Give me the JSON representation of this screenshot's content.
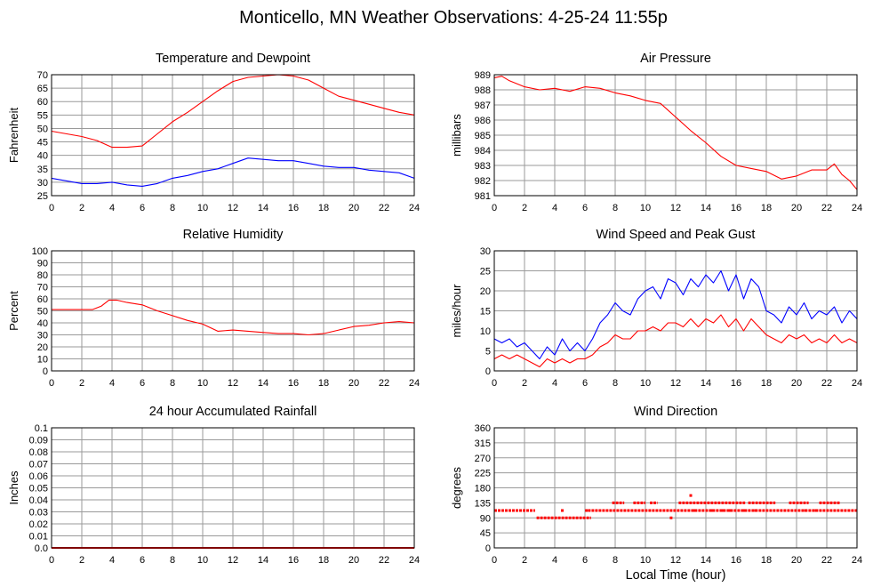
{
  "page": {
    "title": "Monticello, MN Weather Observations: 4-25-24 11:55p",
    "xlabel": "Local Time (hour)"
  },
  "colors": {
    "red": "#ff0000",
    "blue": "#0000ff",
    "grid": "#9a9a9a",
    "frame": "#000000"
  },
  "chart_data": [
    {
      "id": "temp",
      "type": "line",
      "title": "Temperature and Dewpoint",
      "ylabel": "Fahrenheit",
      "xlim": [
        0,
        24
      ],
      "ylim": [
        25,
        70
      ],
      "xticks": [
        "0",
        "2",
        "4",
        "6",
        "8",
        "10",
        "12",
        "14",
        "16",
        "18",
        "20",
        "22",
        "24"
      ],
      "yticks": [
        "25",
        "30",
        "35",
        "40",
        "45",
        "50",
        "55",
        "60",
        "65",
        "70"
      ],
      "grid": true,
      "series": [
        {
          "color": "#ff0000",
          "x": [
            0,
            1,
            2,
            3,
            4,
            5,
            6,
            7,
            8,
            9,
            10,
            11,
            12,
            13,
            14,
            15,
            16,
            17,
            18,
            19,
            20,
            21,
            22,
            23,
            24
          ],
          "y": [
            49,
            48,
            47,
            45.5,
            43,
            43,
            43.5,
            48,
            52.5,
            56,
            60,
            64,
            67.5,
            69,
            69.5,
            70,
            69.5,
            68,
            65,
            62,
            60.5,
            59,
            57.5,
            56,
            55
          ]
        },
        {
          "color": "#0000ff",
          "x": [
            0,
            1,
            2,
            3,
            4,
            5,
            6,
            7,
            8,
            9,
            10,
            11,
            12,
            13,
            14,
            15,
            16,
            17,
            18,
            19,
            20,
            21,
            22,
            23,
            24
          ],
          "y": [
            31.5,
            30.5,
            29.5,
            29.5,
            30,
            29,
            28.5,
            29.5,
            31.5,
            32.5,
            34,
            35,
            37,
            39,
            38.5,
            38,
            38,
            37,
            36,
            35.5,
            35.5,
            34.5,
            34,
            33.5,
            31.5
          ]
        }
      ]
    },
    {
      "id": "pressure",
      "type": "line",
      "title": "Air Pressure",
      "ylabel": "millibars",
      "xlim": [
        0,
        24
      ],
      "ylim": [
        981,
        989
      ],
      "xticks": [
        "0",
        "2",
        "4",
        "6",
        "8",
        "10",
        "12",
        "14",
        "16",
        "18",
        "20",
        "22",
        "24"
      ],
      "yticks": [
        "981",
        "982",
        "983",
        "984",
        "985",
        "986",
        "987",
        "988",
        "989"
      ],
      "grid": true,
      "series": [
        {
          "color": "#ff0000",
          "x": [
            0,
            0.5,
            1,
            2,
            3,
            4,
            5,
            6,
            7,
            8,
            9,
            10,
            11,
            12,
            13,
            14,
            15,
            16,
            17,
            18,
            19,
            20,
            21,
            22,
            22.5,
            23,
            23.5,
            24
          ],
          "y": [
            988.8,
            988.9,
            988.6,
            988.2,
            988.0,
            988.1,
            987.9,
            988.2,
            988.1,
            987.8,
            987.6,
            987.3,
            987.1,
            986.2,
            985.3,
            984.5,
            983.6,
            983.0,
            982.8,
            982.6,
            982.1,
            982.3,
            982.7,
            982.7,
            983.1,
            982.4,
            982.0,
            981.4
          ]
        }
      ]
    },
    {
      "id": "humidity",
      "type": "line",
      "title": "Relative Humidity",
      "ylabel": "Percent",
      "xlim": [
        0,
        24
      ],
      "ylim": [
        0,
        100
      ],
      "xticks": [
        "0",
        "2",
        "4",
        "6",
        "8",
        "10",
        "12",
        "14",
        "16",
        "18",
        "20",
        "22",
        "24"
      ],
      "yticks": [
        "0",
        "10",
        "20",
        "30",
        "40",
        "50",
        "60",
        "70",
        "80",
        "90",
        "100"
      ],
      "grid": true,
      "series": [
        {
          "color": "#ff0000",
          "x": [
            0,
            1,
            2,
            2.7,
            3.3,
            3.8,
            4.3,
            5,
            6,
            7,
            8,
            9,
            10,
            11,
            12,
            13,
            14,
            15,
            16,
            17,
            18,
            19,
            20,
            21,
            22,
            23,
            24
          ],
          "y": [
            51,
            51,
            51,
            51,
            54,
            59,
            59,
            57,
            55,
            50,
            46,
            42,
            39,
            33,
            34,
            33,
            32,
            31,
            31,
            30,
            31,
            34,
            37,
            38,
            40,
            41,
            40
          ]
        }
      ]
    },
    {
      "id": "wind",
      "type": "line",
      "title": "Wind Speed and Peak Gust",
      "ylabel": "miles/hour",
      "xlim": [
        0,
        24
      ],
      "ylim": [
        0,
        30
      ],
      "xticks": [
        "0",
        "2",
        "4",
        "6",
        "8",
        "10",
        "12",
        "14",
        "16",
        "18",
        "20",
        "22",
        "24"
      ],
      "yticks": [
        "0",
        "5",
        "10",
        "15",
        "20",
        "25",
        "30"
      ],
      "grid": true,
      "series": [
        {
          "color": "#0000ff",
          "x": [
            0,
            0.5,
            1,
            1.5,
            2,
            2.5,
            3,
            3.5,
            4,
            4.5,
            5,
            5.5,
            6,
            6.5,
            7,
            7.5,
            8,
            8.5,
            9,
            9.5,
            10,
            10.5,
            11,
            11.5,
            12,
            12.5,
            13,
            13.5,
            14,
            14.5,
            15,
            15.5,
            16,
            16.5,
            17,
            17.5,
            18,
            18.5,
            19,
            19.5,
            20,
            20.5,
            21,
            21.5,
            22,
            22.5,
            23,
            23.5,
            24
          ],
          "y": [
            8,
            7,
            8,
            6,
            7,
            5,
            3,
            6,
            4,
            8,
            5,
            7,
            5,
            8,
            12,
            14,
            17,
            15,
            14,
            18,
            20,
            21,
            18,
            23,
            22,
            19,
            23,
            21,
            24,
            22,
            25,
            20,
            24,
            18,
            23,
            21,
            15,
            14,
            12,
            16,
            14,
            17,
            13,
            15,
            14,
            16,
            12,
            15,
            13
          ]
        },
        {
          "color": "#ff0000",
          "x": [
            0,
            0.5,
            1,
            1.5,
            2,
            2.5,
            3,
            3.5,
            4,
            4.5,
            5,
            5.5,
            6,
            6.5,
            7,
            7.5,
            8,
            8.5,
            9,
            9.5,
            10,
            10.5,
            11,
            11.5,
            12,
            12.5,
            13,
            13.5,
            14,
            14.5,
            15,
            15.5,
            16,
            16.5,
            17,
            17.5,
            18,
            18.5,
            19,
            19.5,
            20,
            20.5,
            21,
            21.5,
            22,
            22.5,
            23,
            23.5,
            24
          ],
          "y": [
            3,
            4,
            3,
            4,
            3,
            2,
            1,
            3,
            2,
            3,
            2,
            3,
            3,
            4,
            6,
            7,
            9,
            8,
            8,
            10,
            10,
            11,
            10,
            12,
            12,
            11,
            13,
            11,
            13,
            12,
            14,
            11,
            13,
            10,
            13,
            11,
            9,
            8,
            7,
            9,
            8,
            9,
            7,
            8,
            7,
            9,
            7,
            8,
            7
          ]
        }
      ]
    },
    {
      "id": "rain",
      "type": "line",
      "title": "24 hour Accumulated Rainfall",
      "ylabel": "Inches",
      "xlim": [
        0,
        24
      ],
      "ylim": [
        0,
        0.1
      ],
      "xticks": [
        "0",
        "2",
        "4",
        "6",
        "8",
        "10",
        "12",
        "14",
        "16",
        "18",
        "20",
        "22",
        "24"
      ],
      "yticks": [
        "0.0",
        "0.01",
        "0.02",
        "0.03",
        "0.04",
        "0.05",
        "0.06",
        "0.07",
        "0.08",
        "0.09",
        "0.1"
      ],
      "grid": true,
      "series": [
        {
          "color": "#ff0000",
          "x": [
            0,
            24
          ],
          "y": [
            0,
            0
          ]
        }
      ]
    },
    {
      "id": "direction",
      "type": "scatter",
      "title": "Wind Direction",
      "ylabel": "degrees",
      "xlim": [
        0,
        24
      ],
      "ylim": [
        0,
        360
      ],
      "xticks": [
        "0",
        "2",
        "4",
        "6",
        "8",
        "10",
        "12",
        "14",
        "16",
        "18",
        "20",
        "22",
        "24"
      ],
      "yticks": [
        "0",
        "45",
        "90",
        "135",
        "180",
        "225",
        "270",
        "315",
        "360"
      ],
      "grid": true,
      "series": [
        {
          "color": "#ff0000",
          "segments": [
            {
              "x0": 0,
              "x1": 2.7,
              "y": 112
            },
            {
              "x0": 2.8,
              "x1": 6.4,
              "y": 90
            },
            {
              "x0": 6.2,
              "x1": 24,
              "y": 112
            },
            {
              "x0": 7.8,
              "x1": 8.6,
              "y": 135
            },
            {
              "x0": 9.2,
              "x1": 10.0,
              "y": 135
            },
            {
              "x0": 10.3,
              "x1": 10.8,
              "y": 135
            },
            {
              "x0": 12.2,
              "x1": 16.6,
              "y": 135
            },
            {
              "x0": 16.8,
              "x1": 18.6,
              "y": 135
            },
            {
              "x0": 19.5,
              "x1": 20.8,
              "y": 135
            },
            {
              "x0": 21.5,
              "x1": 22.9,
              "y": 135
            }
          ],
          "points": [
            [
              4.5,
              112
            ],
            [
              6.1,
              112
            ],
            [
              11.7,
              90
            ],
            [
              13.0,
              157
            ],
            [
              13.2,
              112
            ],
            [
              14.4,
              112
            ],
            [
              15.1,
              112
            ],
            [
              15.6,
              112
            ],
            [
              16.5,
              112
            ],
            [
              17.3,
              112
            ],
            [
              20.6,
              112
            ],
            [
              21.3,
              112
            ]
          ]
        }
      ]
    }
  ]
}
